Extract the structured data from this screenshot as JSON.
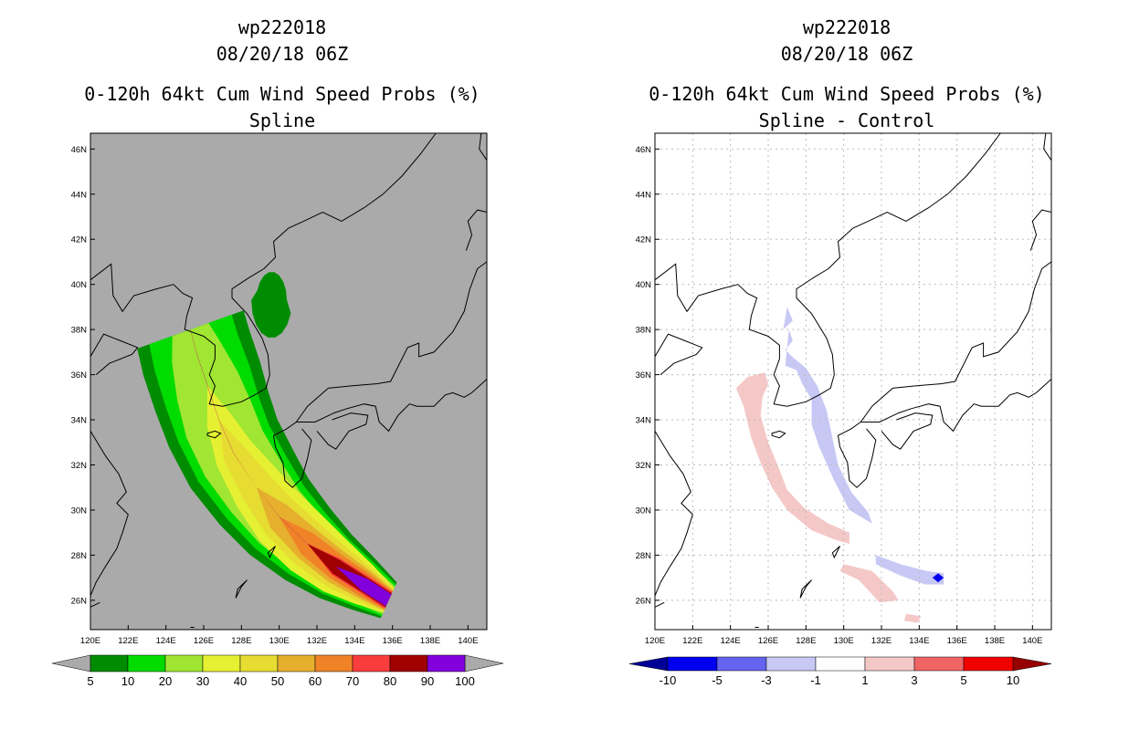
{
  "left_panel": {
    "storm_id": "wp222018",
    "datetime": "08/20/18 06Z",
    "product": "0-120h 64kt Cum Wind Speed Probs (%)",
    "subtitle": "Spline"
  },
  "right_panel": {
    "storm_id": "wp222018",
    "datetime": "08/20/18 06Z",
    "product": "0-120h 64kt Cum Wind Speed Probs (%)",
    "subtitle": "Spline - Control"
  },
  "colors": {
    "land_fill_left": "#aaaaaa",
    "coast": "#000000",
    "grid": "#bbbbbb"
  },
  "chart_data": [
    {
      "type": "heatmap",
      "title": "0-120h 64kt Cum Wind Speed Probs (%) Spline",
      "x_ticks": [
        "120E",
        "122E",
        "124E",
        "126E",
        "128E",
        "130E",
        "132E",
        "134E",
        "136E",
        "138E",
        "140E"
      ],
      "y_ticks": [
        "26N",
        "28N",
        "30N",
        "32N",
        "34N",
        "36N",
        "38N",
        "40N",
        "42N",
        "44N",
        "46N"
      ],
      "xlim": [
        120,
        141
      ],
      "ylim": [
        24.7,
        46.7
      ],
      "colorbar": {
        "labels": [
          "5",
          "10",
          "20",
          "30",
          "40",
          "50",
          "60",
          "70",
          "80",
          "90",
          "100"
        ],
        "colors": [
          "#008c00",
          "#00dc00",
          "#a0e632",
          "#e6f032",
          "#e6dc32",
          "#e6af2d",
          "#f08228",
          "#fa3c3c",
          "#a00000",
          "#8200dc"
        ],
        "under": "#aaaaaa",
        "over": "#aaaaaa"
      },
      "track_core": [
        [
          135.8,
          26.0
        ],
        [
          134.5,
          26.7
        ],
        [
          133.0,
          27.5
        ],
        [
          131.5,
          28.5
        ],
        [
          130.0,
          29.7
        ],
        [
          128.8,
          31.0
        ],
        [
          127.6,
          32.5
        ],
        [
          126.8,
          34.0
        ],
        [
          126.2,
          35.5
        ],
        [
          125.6,
          37.0
        ],
        [
          125.3,
          38.0
        ]
      ],
      "isolated_region": {
        "center": [
          129.6,
          39.3
        ],
        "value_class": "5-10"
      }
    },
    {
      "type": "heatmap",
      "title": "0-120h 64kt Cum Wind Speed Probs (%) Spline - Control",
      "x_ticks": [
        "120E",
        "122E",
        "124E",
        "126E",
        "128E",
        "130E",
        "132E",
        "134E",
        "136E",
        "138E",
        "140E"
      ],
      "y_ticks": [
        "26N",
        "28N",
        "30N",
        "32N",
        "34N",
        "36N",
        "38N",
        "40N",
        "42N",
        "44N",
        "46N"
      ],
      "xlim": [
        120,
        141
      ],
      "ylim": [
        24.7,
        46.7
      ],
      "colorbar": {
        "labels": [
          "-10",
          "-5",
          "-3",
          "-1",
          "1",
          "3",
          "5",
          "10"
        ],
        "colors": [
          "#0000f0",
          "#6464f0",
          "#c8c8f5",
          "#ffffff",
          "#f5c8c8",
          "#f06464",
          "#f00000"
        ],
        "under": "#000096",
        "over": "#960000"
      },
      "positive_band": "west side of track (approx. +1 to +3 %)",
      "negative_band": "east side of track (approx. -1 to -3 %, up to -10 near 135E 27N)"
    }
  ]
}
